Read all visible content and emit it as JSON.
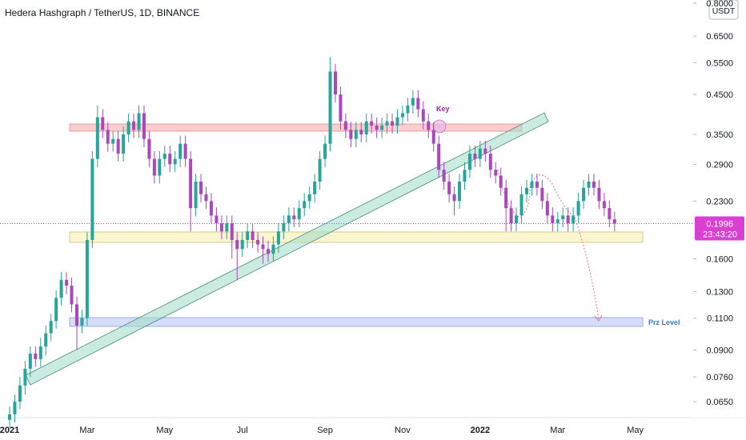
{
  "chart_data": {
    "type": "candlestick",
    "title": "Hedera Hashgraph / TetherUS, 1D, BINANCE",
    "y_unit": "USDT",
    "log_scale": true,
    "up_color": "#26a69a",
    "down_color": "#ab47bc",
    "categories": [
      "2021",
      null,
      null,
      null,
      null,
      null,
      null,
      null,
      null,
      null,
      null,
      null,
      null,
      null,
      null,
      "Mar",
      null,
      null,
      null,
      null,
      null,
      null,
      null,
      null,
      null,
      null,
      null,
      null,
      null,
      null,
      "May",
      null,
      null,
      null,
      null,
      null,
      null,
      null,
      null,
      null,
      null,
      null,
      null,
      null,
      null,
      "Jul",
      null,
      null,
      null,
      null,
      null,
      null,
      null,
      null,
      null,
      null,
      null,
      null,
      null,
      null,
      null,
      "Sep",
      null,
      null,
      null,
      null,
      null,
      null,
      null,
      null,
      null,
      null,
      null,
      null,
      null,
      null,
      "Nov",
      null,
      null,
      null,
      null,
      null,
      null,
      null,
      null,
      null,
      null,
      null,
      null,
      null,
      null,
      "2022",
      null,
      null,
      null,
      null,
      null,
      null,
      null,
      null,
      null,
      null,
      null,
      null,
      null,
      null,
      "Mar",
      null,
      null,
      null,
      null,
      null,
      null,
      null,
      null,
      null,
      null,
      null,
      null,
      null,
      null,
      "May"
    ],
    "open": [
      0.058,
      0.06,
      0.065,
      0.072,
      0.08,
      0.088,
      0.085,
      0.092,
      0.1,
      0.108,
      0.125,
      0.14,
      0.135,
      0.12,
      0.105,
      0.11,
      0.18,
      0.3,
      0.39,
      0.36,
      0.33,
      0.34,
      0.31,
      0.35,
      0.38,
      0.36,
      0.4,
      0.34,
      0.3,
      0.27,
      0.3,
      0.31,
      0.29,
      0.3,
      0.33,
      0.3,
      0.22,
      0.26,
      0.24,
      0.23,
      0.21,
      0.2,
      0.19,
      0.2,
      0.18,
      0.17,
      0.18,
      0.19,
      0.18,
      0.175,
      0.17,
      0.165,
      0.175,
      0.19,
      0.2,
      0.21,
      0.205,
      0.22,
      0.23,
      0.24,
      0.26,
      0.3,
      0.33,
      0.52,
      0.45,
      0.38,
      0.36,
      0.34,
      0.36,
      0.35,
      0.38,
      0.37,
      0.36,
      0.37,
      0.38,
      0.37,
      0.39,
      0.4,
      0.42,
      0.44,
      0.41,
      0.38,
      0.36,
      0.33,
      0.28,
      0.26,
      0.24,
      0.23,
      0.26,
      0.28,
      0.31,
      0.3,
      0.32,
      0.31,
      0.28,
      0.27,
      0.25,
      0.22,
      0.2,
      0.21,
      0.24,
      0.25,
      0.26,
      0.25,
      0.23,
      0.21,
      0.2,
      0.205,
      0.21,
      0.2,
      0.21,
      0.23,
      0.25,
      0.26,
      0.25,
      0.23,
      0.22,
      0.205,
      null,
      null,
      null,
      null
    ],
    "high": [
      0.063,
      0.068,
      0.076,
      0.084,
      0.092,
      0.092,
      0.097,
      0.105,
      0.113,
      0.131,
      0.147,
      0.147,
      0.142,
      0.126,
      0.116,
      0.189,
      0.315,
      0.42,
      0.41,
      0.378,
      0.357,
      0.357,
      0.368,
      0.399,
      0.399,
      0.42,
      0.42,
      0.357,
      0.315,
      0.315,
      0.326,
      0.326,
      0.315,
      0.347,
      0.347,
      0.315,
      0.273,
      0.273,
      0.252,
      0.242,
      0.221,
      0.21,
      0.21,
      0.21,
      0.189,
      0.189,
      0.2,
      0.2,
      0.189,
      0.184,
      0.179,
      0.184,
      0.2,
      0.21,
      0.221,
      0.221,
      0.231,
      0.242,
      0.252,
      0.273,
      0.315,
      0.347,
      0.57,
      0.546,
      0.473,
      0.399,
      0.378,
      0.378,
      0.378,
      0.399,
      0.399,
      0.389,
      0.389,
      0.399,
      0.399,
      0.41,
      0.42,
      0.441,
      0.462,
      0.462,
      0.431,
      0.399,
      0.378,
      0.347,
      0.294,
      0.273,
      0.252,
      0.273,
      0.294,
      0.326,
      0.326,
      0.336,
      0.336,
      0.326,
      0.294,
      0.284,
      0.263,
      0.231,
      0.221,
      0.252,
      0.263,
      0.273,
      0.273,
      0.263,
      0.242,
      0.221,
      0.215,
      0.221,
      0.221,
      0.221,
      0.242,
      0.263,
      0.273,
      0.273,
      0.263,
      0.242,
      0.231,
      0.215,
      null,
      null,
      null,
      null
    ],
    "low": [
      0.055,
      0.057,
      0.062,
      0.068,
      0.076,
      0.081,
      0.081,
      0.087,
      0.095,
      0.103,
      0.119,
      0.128,
      0.114,
      0.09,
      0.1,
      0.105,
      0.171,
      0.285,
      0.342,
      0.314,
      0.314,
      0.295,
      0.295,
      0.333,
      0.342,
      0.342,
      0.323,
      0.285,
      0.257,
      0.257,
      0.285,
      0.276,
      0.276,
      0.285,
      0.285,
      0.19,
      0.209,
      0.228,
      0.219,
      0.2,
      0.19,
      0.181,
      0.181,
      0.16,
      0.14,
      0.162,
      0.171,
      0.171,
      0.166,
      0.155,
      0.157,
      0.157,
      0.166,
      0.181,
      0.19,
      0.195,
      0.195,
      0.209,
      0.219,
      0.228,
      0.247,
      0.285,
      0.314,
      0.428,
      0.361,
      0.342,
      0.323,
      0.323,
      0.333,
      0.333,
      0.352,
      0.342,
      0.342,
      0.352,
      0.352,
      0.352,
      0.371,
      0.38,
      0.399,
      0.39,
      0.361,
      0.342,
      0.314,
      0.266,
      0.247,
      0.228,
      0.21,
      0.219,
      0.247,
      0.266,
      0.285,
      0.285,
      0.295,
      0.266,
      0.257,
      0.238,
      0.19,
      0.19,
      0.19,
      0.2,
      0.228,
      0.238,
      0.238,
      0.219,
      0.2,
      0.19,
      0.19,
      0.195,
      0.19,
      0.19,
      0.2,
      0.219,
      0.238,
      0.238,
      0.219,
      0.209,
      0.195,
      0.19,
      null,
      null,
      null,
      null
    ],
    "close": [
      0.06,
      0.065,
      0.072,
      0.08,
      0.088,
      0.085,
      0.092,
      0.1,
      0.108,
      0.125,
      0.14,
      0.135,
      0.12,
      0.105,
      0.11,
      0.18,
      0.3,
      0.39,
      0.36,
      0.33,
      0.34,
      0.31,
      0.35,
      0.38,
      0.36,
      0.4,
      0.34,
      0.3,
      0.27,
      0.3,
      0.31,
      0.29,
      0.3,
      0.33,
      0.3,
      0.22,
      0.26,
      0.24,
      0.23,
      0.21,
      0.2,
      0.19,
      0.2,
      0.18,
      0.17,
      0.18,
      0.19,
      0.18,
      0.175,
      0.17,
      0.165,
      0.175,
      0.19,
      0.2,
      0.21,
      0.205,
      0.22,
      0.23,
      0.24,
      0.26,
      0.3,
      0.33,
      0.52,
      0.45,
      0.38,
      0.36,
      0.34,
      0.36,
      0.35,
      0.38,
      0.37,
      0.36,
      0.37,
      0.38,
      0.37,
      0.39,
      0.4,
      0.42,
      0.44,
      0.41,
      0.38,
      0.36,
      0.33,
      0.28,
      0.26,
      0.24,
      0.23,
      0.26,
      0.28,
      0.31,
      0.3,
      0.32,
      0.31,
      0.28,
      0.27,
      0.25,
      0.22,
      0.2,
      0.21,
      0.24,
      0.25,
      0.26,
      0.25,
      0.23,
      0.21,
      0.2,
      0.205,
      0.21,
      0.2,
      0.21,
      0.23,
      0.25,
      0.26,
      0.25,
      0.23,
      0.22,
      0.205,
      0.1996,
      null,
      null,
      null,
      null
    ],
    "last_price": {
      "value": 0.1996,
      "label": "0.1996"
    },
    "countdown": "23:43:20",
    "ylim": [
      0.0588,
      0.816
    ],
    "yticks": [
      {
        "value": 0.065,
        "label": "0.0650"
      },
      {
        "value": 0.076,
        "label": "0.0760"
      },
      {
        "value": 0.09,
        "label": "0.0900"
      },
      {
        "value": 0.11,
        "label": "0.1100"
      },
      {
        "value": 0.13,
        "label": "0.1300"
      },
      {
        "value": 0.16,
        "label": "0.1600"
      },
      {
        "value": 0.23,
        "label": "0.2300"
      },
      {
        "value": 0.29,
        "label": "0.2900"
      },
      {
        "value": 0.35,
        "label": "0.3500"
      },
      {
        "value": 0.45,
        "label": "0.4500"
      },
      {
        "value": 0.55,
        "label": "0.5500"
      },
      {
        "value": 0.65,
        "label": "0.6500"
      },
      {
        "value": 0.8,
        "label": "0.8000"
      }
    ],
    "annotations": [
      "Key",
      "Prz Level"
    ]
  }
}
